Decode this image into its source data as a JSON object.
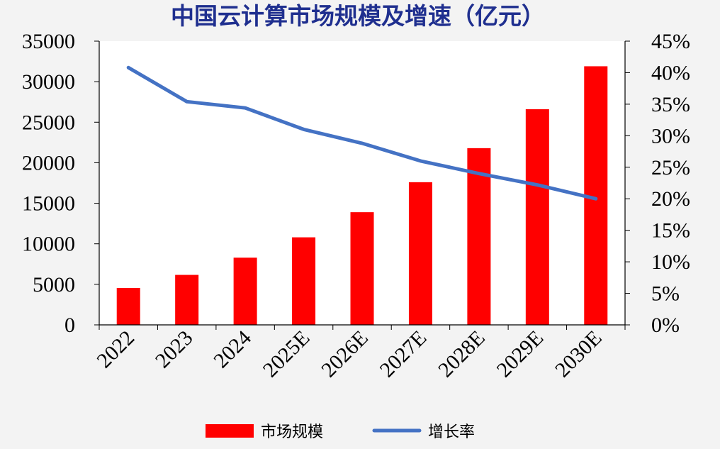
{
  "chart_data": {
    "type": "bar",
    "title": "中国云计算市场规模及增速（亿元）",
    "categories": [
      "2022",
      "2023",
      "2024",
      "2025E",
      "2026E",
      "2027E",
      "2028E",
      "2029E",
      "2030E"
    ],
    "series": [
      {
        "name": "市场规模",
        "type": "bar",
        "axis": "left",
        "color": "#FF0000",
        "values": [
          4550,
          6165,
          8288,
          10800,
          13900,
          17600,
          21800,
          26600,
          31900
        ]
      },
      {
        "name": "增长率",
        "type": "line",
        "axis": "right",
        "color": "#4472C4",
        "values": [
          0.408,
          0.354,
          0.344,
          0.31,
          0.288,
          0.26,
          0.24,
          0.222,
          0.2
        ]
      }
    ],
    "y_left": {
      "min": 0,
      "max": 35000,
      "ticks": [
        "0",
        "5000",
        "10000",
        "15000",
        "20000",
        "25000",
        "30000",
        "35000"
      ]
    },
    "y_right": {
      "min": 0,
      "max": 0.45,
      "ticks": [
        "0%",
        "5%",
        "10%",
        "15%",
        "20%",
        "25%",
        "30%",
        "35%",
        "40%",
        "45%"
      ]
    },
    "grid": false,
    "legend_position": "bottom",
    "x_tick_rotation": -45
  },
  "colors": {
    "title": "#1F2F8F",
    "background": "#F3F3F3",
    "plot_background": "#FFFFFF"
  }
}
